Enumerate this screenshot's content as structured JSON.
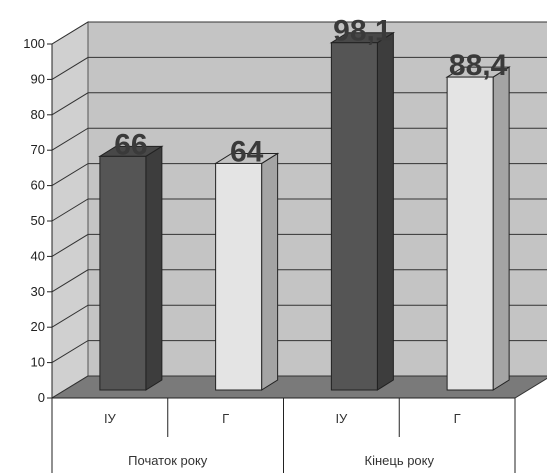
{
  "chart_data": {
    "type": "bar",
    "title": "",
    "xlabel": "",
    "ylabel": "",
    "ylim": [
      0,
      100
    ],
    "yticks": [
      0,
      10,
      20,
      30,
      40,
      50,
      60,
      70,
      80,
      90,
      100
    ],
    "grid": true,
    "groups": [
      {
        "label": "Початок року",
        "bars": [
          {
            "category": "ІУ",
            "value": 66,
            "label": "66",
            "color": "#555555"
          },
          {
            "category": "Г",
            "value": 64,
            "label": "64",
            "color": "#e4e4e4"
          }
        ]
      },
      {
        "label": "Кінець року",
        "bars": [
          {
            "category": "ІУ",
            "value": 98.1,
            "label": "98,1",
            "color": "#555555"
          },
          {
            "category": "Г",
            "value": 88.4,
            "label": "88,4",
            "color": "#e4e4e4"
          }
        ]
      }
    ]
  }
}
